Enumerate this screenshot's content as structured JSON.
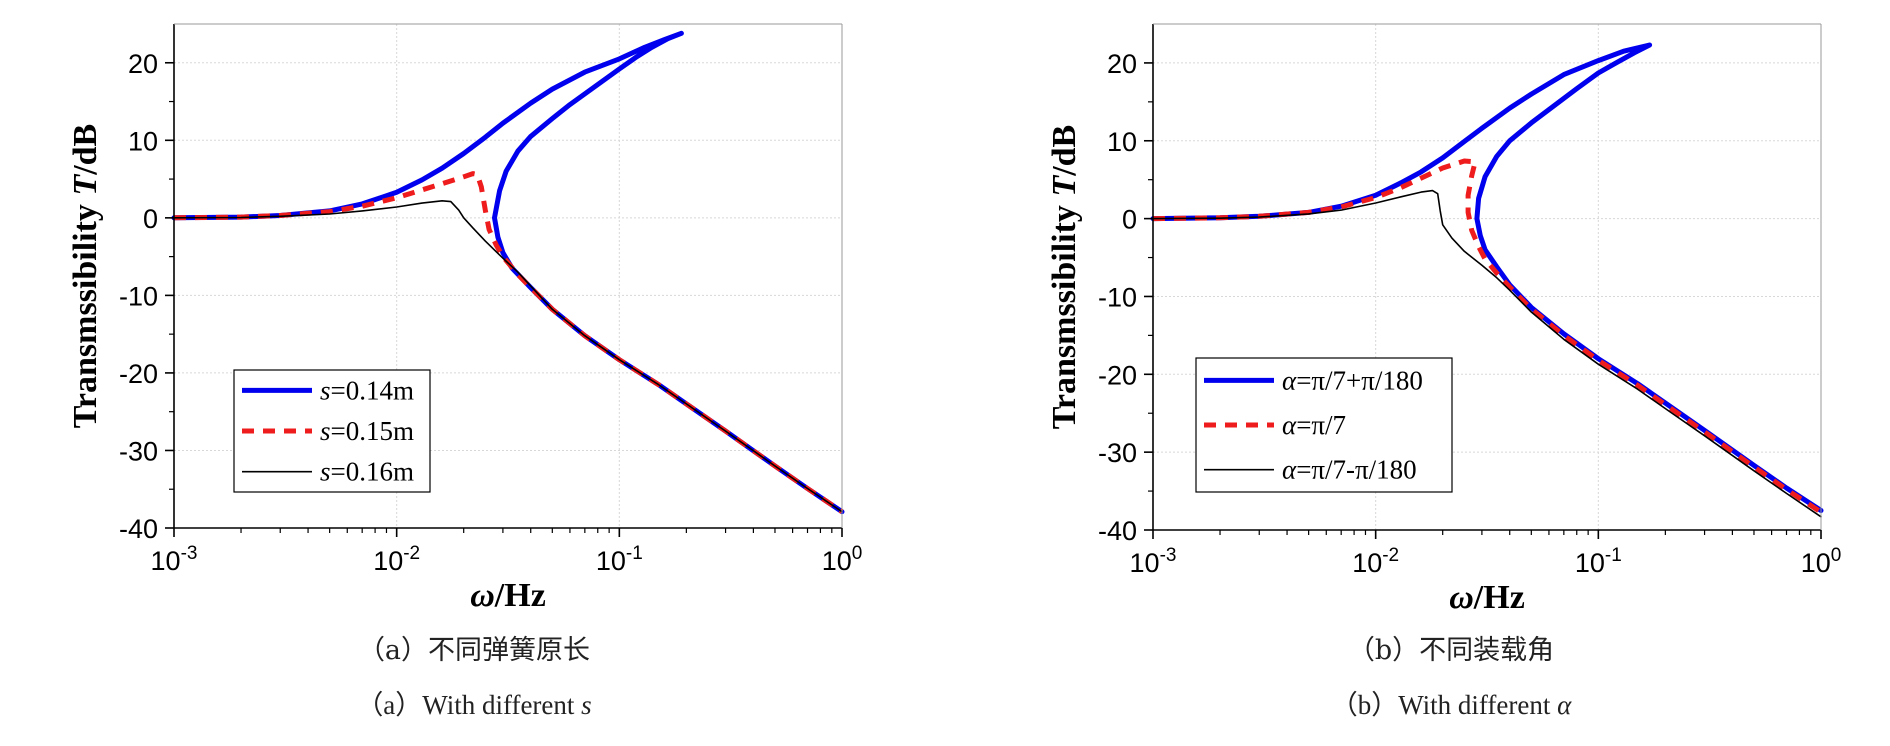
{
  "chart_data": [
    {
      "type": "line",
      "panel": "a",
      "xlabel": "ω/Hz",
      "ylabel": "Transmssibility T/dB",
      "xscale": "log",
      "xlim": [
        0.001,
        1
      ],
      "ylim": [
        -40,
        25
      ],
      "xticks": [
        0.001,
        0.01,
        0.1,
        1
      ],
      "xtick_base": [
        "10",
        "10",
        "10",
        "10"
      ],
      "xtick_exp": [
        "-3",
        "-2",
        "-1",
        "0"
      ],
      "yticks": [
        20,
        10,
        0,
        -10,
        -20,
        -30,
        -40
      ],
      "ytick_labels": [
        "20",
        "10",
        "0",
        "-10",
        "-20",
        "-30",
        "-40"
      ],
      "grid": true,
      "legend_position": "bottom-left",
      "caption_cn": "（a）不同弹簧原长",
      "caption_en_prefix": "（a）With different ",
      "caption_en_sym": "s",
      "series": [
        {
          "name": "s=0.14m",
          "name_sym": "s",
          "name_rest": "=0.14m",
          "color": "#0000ee",
          "style": "solid",
          "points": [
            [
              0.001,
              0
            ],
            [
              0.002,
              0.1
            ],
            [
              0.003,
              0.3
            ],
            [
              0.005,
              0.9
            ],
            [
              0.007,
              1.8
            ],
            [
              0.01,
              3.3
            ],
            [
              0.013,
              4.9
            ],
            [
              0.016,
              6.4
            ],
            [
              0.02,
              8.3
            ],
            [
              0.025,
              10.4
            ],
            [
              0.03,
              12.2
            ],
            [
              0.04,
              14.8
            ],
            [
              0.05,
              16.6
            ],
            [
              0.07,
              18.8
            ],
            [
              0.1,
              20.5
            ],
            [
              0.13,
              22
            ],
            [
              0.16,
              23
            ],
            [
              0.19,
              23.8
            ],
            [
              0.165,
              23.1
            ],
            [
              0.14,
              22
            ],
            [
              0.12,
              20.8
            ],
            [
              0.1,
              19.2
            ],
            [
              0.08,
              17.2
            ],
            [
              0.06,
              14.6
            ],
            [
              0.05,
              12.8
            ],
            [
              0.04,
              10.5
            ],
            [
              0.035,
              8.6
            ],
            [
              0.031,
              6
            ],
            [
              0.029,
              3.5
            ],
            [
              0.0275,
              0
            ],
            [
              0.0285,
              -2.5
            ],
            [
              0.03,
              -4.5
            ],
            [
              0.033,
              -6.5
            ],
            [
              0.04,
              -9
            ],
            [
              0.05,
              -11.8
            ],
            [
              0.07,
              -15.2
            ],
            [
              0.1,
              -18.3
            ],
            [
              0.15,
              -21.5
            ],
            [
              0.2,
              -24
            ],
            [
              0.3,
              -27.5
            ],
            [
              0.5,
              -32
            ],
            [
              0.7,
              -34.9
            ],
            [
              1,
              -37.9
            ]
          ]
        },
        {
          "name": "s=0.15m",
          "name_sym": "s",
          "name_rest": "=0.15m",
          "color": "#ee1c1c",
          "style": "dashed",
          "points": [
            [
              0.001,
              0
            ],
            [
              0.002,
              0.1
            ],
            [
              0.003,
              0.3
            ],
            [
              0.005,
              0.8
            ],
            [
              0.007,
              1.5
            ],
            [
              0.01,
              2.6
            ],
            [
              0.013,
              3.6
            ],
            [
              0.016,
              4.4
            ],
            [
              0.02,
              5.3
            ],
            [
              0.022,
              5.7
            ],
            [
              0.023,
              5.6
            ],
            [
              0.024,
              4
            ],
            [
              0.025,
              1
            ],
            [
              0.026,
              -1.5
            ],
            [
              0.028,
              -3.5
            ],
            [
              0.03,
              -5
            ],
            [
              0.035,
              -7.3
            ],
            [
              0.04,
              -9
            ],
            [
              0.05,
              -11.8
            ],
            [
              0.07,
              -15.2
            ],
            [
              0.1,
              -18.3
            ],
            [
              0.15,
              -21.5
            ],
            [
              0.2,
              -24
            ],
            [
              0.3,
              -27.5
            ],
            [
              0.5,
              -32
            ],
            [
              0.7,
              -34.9
            ],
            [
              1,
              -37.9
            ]
          ]
        },
        {
          "name": "s=0.16m",
          "name_sym": "s",
          "name_rest": "=0.16m",
          "color": "#000000",
          "style": "solid-thin",
          "points": [
            [
              0.001,
              0
            ],
            [
              0.002,
              0.05
            ],
            [
              0.003,
              0.2
            ],
            [
              0.005,
              0.5
            ],
            [
              0.007,
              0.9
            ],
            [
              0.01,
              1.4
            ],
            [
              0.013,
              1.9
            ],
            [
              0.016,
              2.2
            ],
            [
              0.0175,
              2.1
            ],
            [
              0.019,
              1
            ],
            [
              0.02,
              0
            ],
            [
              0.022,
              -1.3
            ],
            [
              0.025,
              -3
            ],
            [
              0.03,
              -5.2
            ],
            [
              0.035,
              -7
            ],
            [
              0.04,
              -8.8
            ],
            [
              0.05,
              -11.8
            ],
            [
              0.07,
              -15.2
            ],
            [
              0.1,
              -18.3
            ],
            [
              0.15,
              -21.5
            ],
            [
              0.2,
              -24
            ],
            [
              0.3,
              -27.5
            ],
            [
              0.5,
              -32
            ],
            [
              0.7,
              -34.9
            ],
            [
              1,
              -37.9
            ]
          ]
        }
      ]
    },
    {
      "type": "line",
      "panel": "b",
      "xlabel": "ω/Hz",
      "ylabel": "Transmssibility T/dB",
      "xscale": "log",
      "xlim": [
        0.001,
        1
      ],
      "ylim": [
        -40,
        25
      ],
      "xticks": [
        0.001,
        0.01,
        0.1,
        1
      ],
      "xtick_base": [
        "10",
        "10",
        "10",
        "10"
      ],
      "xtick_exp": [
        "-3",
        "-2",
        "-1",
        "0"
      ],
      "yticks": [
        20,
        10,
        0,
        -10,
        -20,
        -30,
        -40
      ],
      "ytick_labels": [
        "20",
        "10",
        "0",
        "-10",
        "-20",
        "-30",
        "-40"
      ],
      "grid": true,
      "legend_position": "bottom-left",
      "caption_cn": "（b）不同装载角",
      "caption_en_prefix": "（b）With different ",
      "caption_en_sym": "α",
      "series": [
        {
          "name": "α=π/7+π/180",
          "name_sym": "α",
          "name_rest": "=π/7+π/180",
          "color": "#0000ee",
          "style": "solid",
          "points": [
            [
              0.001,
              0
            ],
            [
              0.002,
              0.1
            ],
            [
              0.003,
              0.3
            ],
            [
              0.005,
              0.8
            ],
            [
              0.007,
              1.6
            ],
            [
              0.01,
              3
            ],
            [
              0.013,
              4.6
            ],
            [
              0.016,
              6
            ],
            [
              0.02,
              7.8
            ],
            [
              0.025,
              9.9
            ],
            [
              0.03,
              11.6
            ],
            [
              0.04,
              14.2
            ],
            [
              0.05,
              16
            ],
            [
              0.07,
              18.5
            ],
            [
              0.1,
              20.3
            ],
            [
              0.13,
              21.5
            ],
            [
              0.17,
              22.3
            ],
            [
              0.145,
              21.3
            ],
            [
              0.12,
              20
            ],
            [
              0.1,
              18.7
            ],
            [
              0.08,
              16.7
            ],
            [
              0.06,
              14
            ],
            [
              0.05,
              12.3
            ],
            [
              0.04,
              10
            ],
            [
              0.035,
              8
            ],
            [
              0.031,
              5.4
            ],
            [
              0.029,
              2.6
            ],
            [
              0.0285,
              0
            ],
            [
              0.0295,
              -2.2
            ],
            [
              0.031,
              -4
            ],
            [
              0.035,
              -6.2
            ],
            [
              0.04,
              -8.5
            ],
            [
              0.05,
              -11.4
            ],
            [
              0.07,
              -14.8
            ],
            [
              0.1,
              -18
            ],
            [
              0.15,
              -21.2
            ],
            [
              0.2,
              -23.7
            ],
            [
              0.3,
              -27.2
            ],
            [
              0.5,
              -31.7
            ],
            [
              0.7,
              -34.6
            ],
            [
              1,
              -37.5
            ]
          ]
        },
        {
          "name": "α=π/7",
          "name_sym": "α",
          "name_rest": "=π/7",
          "color": "#ee1c1c",
          "style": "dashed",
          "points": [
            [
              0.001,
              0
            ],
            [
              0.002,
              0.1
            ],
            [
              0.003,
              0.3
            ],
            [
              0.005,
              0.8
            ],
            [
              0.007,
              1.5
            ],
            [
              0.01,
              2.7
            ],
            [
              0.013,
              4
            ],
            [
              0.016,
              5.2
            ],
            [
              0.02,
              6.5
            ],
            [
              0.025,
              7.4
            ],
            [
              0.028,
              7.3
            ],
            [
              0.027,
              5.5
            ],
            [
              0.026,
              3
            ],
            [
              0.026,
              0.8
            ],
            [
              0.027,
              -1.5
            ],
            [
              0.029,
              -3.6
            ],
            [
              0.031,
              -5.2
            ],
            [
              0.035,
              -7
            ],
            [
              0.04,
              -8.8
            ],
            [
              0.05,
              -11.6
            ],
            [
              0.07,
              -15
            ],
            [
              0.1,
              -18.2
            ],
            [
              0.15,
              -21.4
            ],
            [
              0.2,
              -23.9
            ],
            [
              0.3,
              -27.4
            ],
            [
              0.5,
              -31.9
            ],
            [
              0.7,
              -34.8
            ],
            [
              1,
              -37.7
            ]
          ]
        },
        {
          "name": "α=π/7-π/180",
          "name_sym": "α",
          "name_rest": "=π/7-π/180",
          "color": "#000000",
          "style": "solid-thin",
          "points": [
            [
              0.001,
              0
            ],
            [
              0.002,
              0.05
            ],
            [
              0.003,
              0.2
            ],
            [
              0.005,
              0.6
            ],
            [
              0.007,
              1.1
            ],
            [
              0.01,
              2
            ],
            [
              0.013,
              2.8
            ],
            [
              0.016,
              3.4
            ],
            [
              0.018,
              3.6
            ],
            [
              0.019,
              3.2
            ],
            [
              0.0195,
              1
            ],
            [
              0.02,
              -0.8
            ],
            [
              0.022,
              -2.5
            ],
            [
              0.025,
              -4.2
            ],
            [
              0.03,
              -6
            ],
            [
              0.035,
              -7.6
            ],
            [
              0.04,
              -9.2
            ],
            [
              0.05,
              -12
            ],
            [
              0.07,
              -15.5
            ],
            [
              0.1,
              -18.7
            ],
            [
              0.15,
              -21.9
            ],
            [
              0.2,
              -24.4
            ],
            [
              0.3,
              -27.9
            ],
            [
              0.5,
              -32.4
            ],
            [
              0.7,
              -35.3
            ],
            [
              1,
              -38.3
            ]
          ]
        }
      ]
    }
  ]
}
